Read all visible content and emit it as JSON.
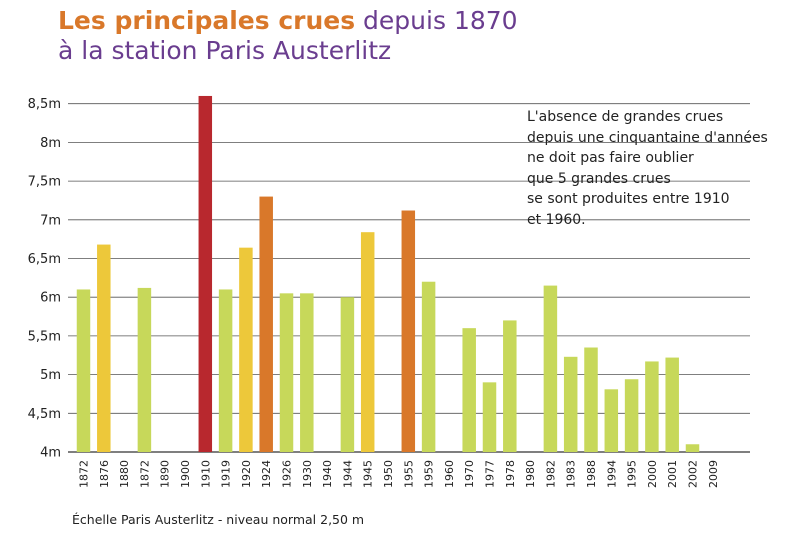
{
  "title": {
    "part1": "Les principales crues",
    "part2": " depuis 1870",
    "line2": "à la station Paris Austerlitz"
  },
  "annotation": "L'absence de grandes crues\ndepuis une cinquantaine d'années\nne doit pas faire oublier\nque 5 grandes crues\nse sont produites entre 1910\net 1960.",
  "footnote": "Échelle Paris Austerlitz - niveau normal 2,50 m",
  "colors": {
    "green": "#c7d85a",
    "yellow": "#edc83a",
    "orange": "#d9782a",
    "red": "#b8282e",
    "grid": "#555555"
  },
  "chart_data": {
    "type": "bar",
    "title": "Les principales crues depuis 1870 à la station Paris Austerlitz",
    "xlabel": "",
    "ylabel": "",
    "ylim": [
      4,
      8.6
    ],
    "yticks": [
      4,
      4.5,
      5,
      5.5,
      6,
      6.5,
      7,
      7.5,
      8,
      8.5
    ],
    "ytick_labels": [
      "4m",
      "4,5m",
      "5m",
      "5,5m",
      "6m",
      "6,5m",
      "7m",
      "7,5m",
      "8m",
      "8,5m"
    ],
    "grid": true,
    "categories": [
      "1872",
      "1876",
      "1880",
      "1872",
      "1890",
      "1900",
      "1910",
      "1919",
      "1920",
      "1924",
      "1926",
      "1930",
      "1940",
      "1944",
      "1945",
      "1950",
      "1955",
      "1959",
      "1960",
      "1970",
      "1977",
      "1978",
      "1980",
      "1982",
      "1983",
      "1988",
      "1994",
      "1995",
      "2000",
      "2001",
      "2002",
      "2009"
    ],
    "values": [
      6.1,
      6.68,
      null,
      6.12,
      null,
      null,
      8.6,
      6.1,
      6.64,
      7.3,
      6.05,
      6.05,
      null,
      6.0,
      6.84,
      null,
      7.12,
      6.2,
      null,
      5.6,
      4.9,
      5.7,
      null,
      6.15,
      5.23,
      5.35,
      4.81,
      4.94,
      5.17,
      5.22,
      4.1,
      null
    ],
    "bar_colors": [
      "green",
      "yellow",
      null,
      "green",
      null,
      null,
      "red",
      "green",
      "yellow",
      "orange",
      "green",
      "green",
      null,
      "green",
      "yellow",
      null,
      "orange",
      "green",
      null,
      "green",
      "green",
      "green",
      null,
      "green",
      "green",
      "green",
      "green",
      "green",
      "green",
      "green",
      "green",
      null
    ]
  }
}
